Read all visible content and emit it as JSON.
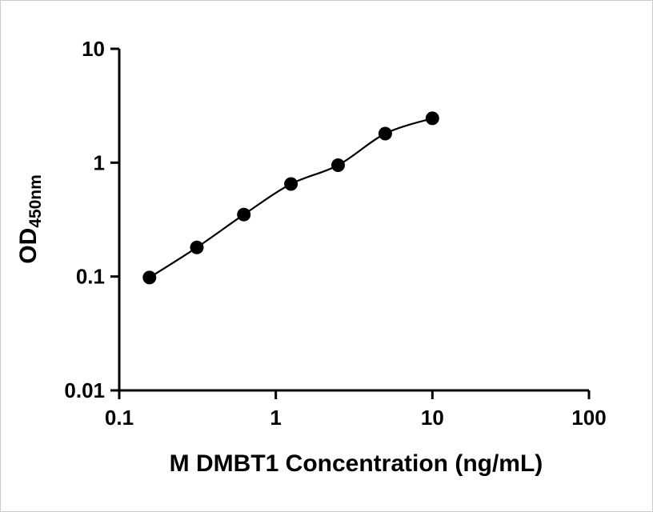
{
  "chart_data": {
    "type": "scatter",
    "title": "",
    "xlabel": "M DMBT1 Concentration (ng/mL)",
    "ylabel_main": "OD",
    "ylabel_sub": "450nm",
    "x_scale": "log",
    "y_scale": "log",
    "xlim": [
      0.1,
      100
    ],
    "ylim": [
      0.01,
      10
    ],
    "grid": "off",
    "legend": "none",
    "x_ticks": [
      {
        "value": 0.1,
        "label": "0.1"
      },
      {
        "value": 1,
        "label": "1"
      },
      {
        "value": 10,
        "label": "10"
      },
      {
        "value": 100,
        "label": "100"
      }
    ],
    "y_ticks": [
      {
        "value": 10,
        "label": "10"
      },
      {
        "value": 1,
        "label": "1"
      },
      {
        "value": 0.1,
        "label": "0.1"
      },
      {
        "value": 0.01,
        "label": "0.01"
      }
    ],
    "points": [
      {
        "x": 0.156,
        "y": 0.098
      },
      {
        "x": 0.313,
        "y": 0.18
      },
      {
        "x": 0.625,
        "y": 0.35
      },
      {
        "x": 1.25,
        "y": 0.65
      },
      {
        "x": 2.5,
        "y": 0.95
      },
      {
        "x": 5,
        "y": 1.8
      },
      {
        "x": 10,
        "y": 2.45
      }
    ],
    "curve": "smooth-through-points",
    "axis_color": "#000000",
    "line_color": "#000000",
    "marker_color": "#000000"
  }
}
